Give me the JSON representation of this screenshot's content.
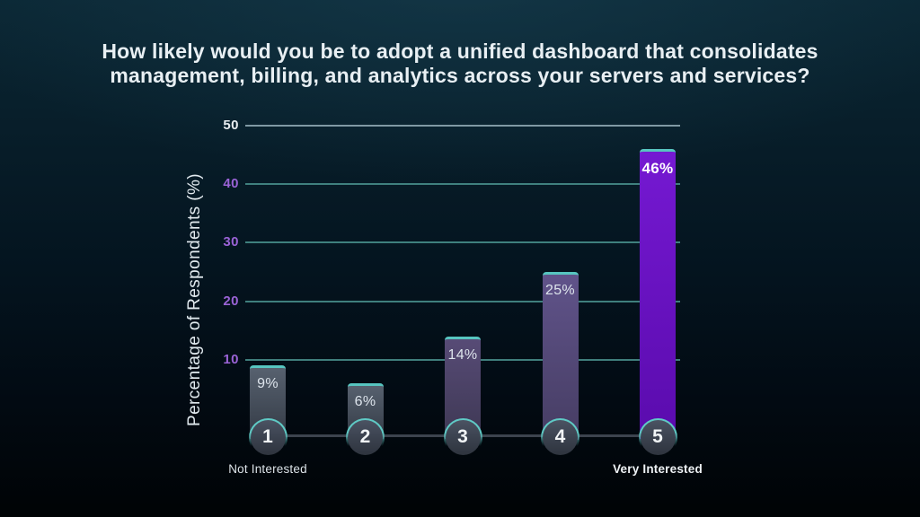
{
  "title": {
    "text": "How likely would you be to adopt a unified dashboard that consolidates management, billing, and analytics across your servers and services?"
  },
  "chart_data": {
    "type": "bar",
    "title": "How likely would you be to adopt a unified dashboard that consolidates management, billing, and analytics across your servers and services?",
    "categories": [
      "1",
      "2",
      "3",
      "4",
      "5"
    ],
    "values": [
      9,
      6,
      14,
      25,
      46
    ],
    "value_labels": [
      "9%",
      "6%",
      "14%",
      "25%",
      "46%"
    ],
    "ylabel": "Percentage of Respondents (%)",
    "xlabel": "",
    "yticks": [
      10,
      20,
      30,
      40,
      50
    ],
    "ylim": [
      0,
      50
    ],
    "grid": true,
    "legend": false,
    "x_axis_annotations": {
      "left": "Not Interested",
      "right": "Very Interested"
    },
    "emphasized_category": "5"
  },
  "styles": {
    "title_color": "#e8eff3",
    "tick_color_default": "#9a63d6",
    "tick_color_top": "#e9eef1",
    "gridline_color": "#4a938e",
    "gridline_color_top": "#87a0ab",
    "axis_line_color": "#3c434e",
    "cap_color": "#57c5c0",
    "circle_ring_color": "#5fcac5",
    "bar_gradients": [
      {
        "top": "#57616f",
        "bottom": "#333a45"
      },
      {
        "top": "#57616f",
        "bottom": "#333a45"
      },
      {
        "top": "#574b76",
        "bottom": "#3e3854"
      },
      {
        "top": "#60538a",
        "bottom": "#463d63"
      },
      {
        "top": "#7519d2",
        "bottom": "#5a0bad"
      }
    ]
  }
}
